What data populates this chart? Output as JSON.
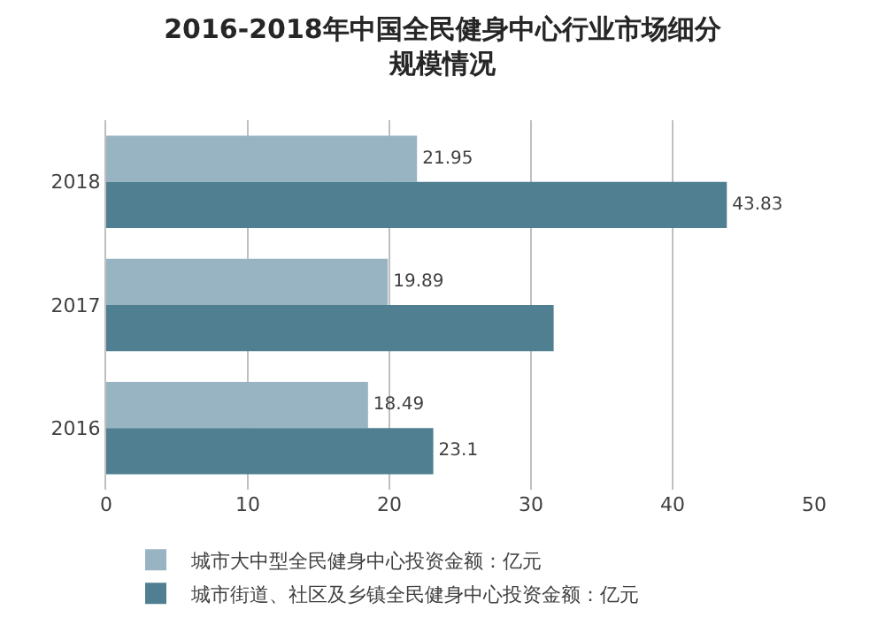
{
  "chart_data": {
    "type": "bar",
    "orientation": "horizontal",
    "title": "2016-2018年中国全民健身中心行业市场细分规模情况",
    "categories": [
      "2018",
      "2017",
      "2016"
    ],
    "series": [
      {
        "name": "城市大中型全民健身中心投资金额：亿元",
        "color": "#98b4c2",
        "values": [
          21.95,
          19.89,
          18.49
        ],
        "value_labels": [
          "21.95",
          "19.89",
          "18.49"
        ]
      },
      {
        "name": "城市街道、社区及乡镇全民健身中心投资金额：亿元",
        "color": "#4f7f91",
        "values": [
          43.83,
          31.6,
          23.1
        ],
        "value_labels": [
          "43.83",
          null,
          "23.1"
        ]
      }
    ],
    "xlim": [
      0,
      50
    ],
    "xticks": [
      0,
      10,
      20,
      30,
      40,
      50
    ],
    "grid": "x",
    "legend": "bottom"
  }
}
